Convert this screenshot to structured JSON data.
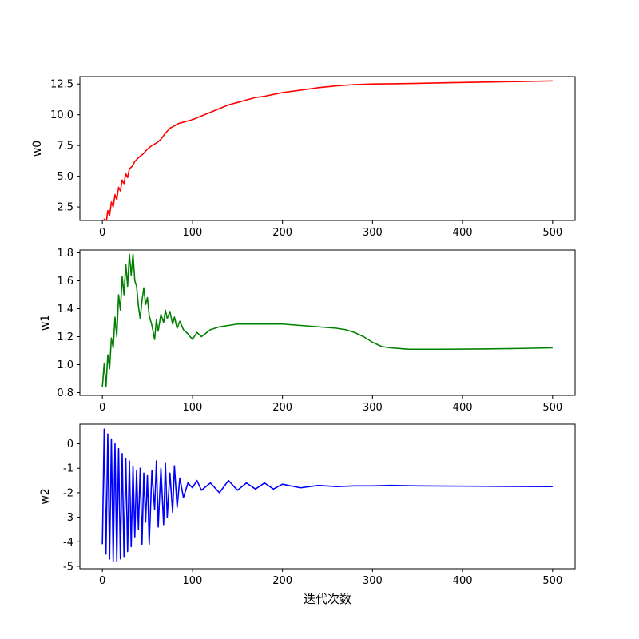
{
  "chart_data": [
    {
      "type": "line",
      "title": "",
      "xlabel": "",
      "ylabel": "w0",
      "xlim": [
        -25,
        525
      ],
      "ylim": [
        1.4,
        13.1
      ],
      "xticks": [
        0,
        100,
        200,
        300,
        400,
        500
      ],
      "yticks": [
        2.5,
        5.0,
        7.5,
        10.0,
        12.5
      ],
      "ytick_format": "1dp",
      "grid": false,
      "legend": "none",
      "series": [
        {
          "color": "#ff0000",
          "x": [
            0,
            2,
            4,
            6,
            8,
            10,
            12,
            14,
            16,
            18,
            20,
            22,
            24,
            26,
            28,
            30,
            33,
            36,
            40,
            45,
            50,
            55,
            60,
            65,
            70,
            75,
            80,
            85,
            90,
            95,
            100,
            110,
            120,
            130,
            140,
            150,
            160,
            170,
            180,
            190,
            200,
            220,
            240,
            260,
            280,
            300,
            320,
            350,
            380,
            420,
            460,
            500
          ],
          "y": [
            0.7,
            1.5,
            1.1,
            2.2,
            1.8,
            2.9,
            2.5,
            3.5,
            3.1,
            4.1,
            3.8,
            4.7,
            4.4,
            5.2,
            4.9,
            5.6,
            5.8,
            6.2,
            6.5,
            6.8,
            7.2,
            7.5,
            7.7,
            8.0,
            8.5,
            8.9,
            9.1,
            9.3,
            9.4,
            9.5,
            9.6,
            9.9,
            10.2,
            10.5,
            10.8,
            11.0,
            11.2,
            11.4,
            11.5,
            11.65,
            11.8,
            12.0,
            12.2,
            12.35,
            12.45,
            12.5,
            12.52,
            12.55,
            12.6,
            12.65,
            12.7,
            12.75
          ]
        }
      ]
    },
    {
      "type": "line",
      "title": "",
      "xlabel": "",
      "ylabel": "w1",
      "xlim": [
        -25,
        525
      ],
      "ylim": [
        0.78,
        1.82
      ],
      "xticks": [
        0,
        100,
        200,
        300,
        400,
        500
      ],
      "yticks": [
        0.8,
        1.0,
        1.2,
        1.4,
        1.6,
        1.8
      ],
      "ytick_format": "1dp",
      "grid": false,
      "legend": "none",
      "series": [
        {
          "color": "#008000",
          "x": [
            0,
            2,
            4,
            6,
            8,
            10,
            12,
            14,
            16,
            18,
            20,
            22,
            24,
            26,
            28,
            30,
            32,
            34,
            36,
            38,
            40,
            42,
            44,
            46,
            48,
            50,
            52,
            55,
            58,
            60,
            62,
            65,
            68,
            70,
            72,
            75,
            78,
            80,
            83,
            86,
            90,
            95,
            100,
            105,
            110,
            120,
            130,
            140,
            150,
            160,
            170,
            180,
            190,
            200,
            220,
            240,
            260,
            270,
            280,
            290,
            300,
            310,
            320,
            340,
            360,
            380,
            420,
            460,
            500
          ],
          "y": [
            0.84,
            1.01,
            0.84,
            1.07,
            0.97,
            1.19,
            1.12,
            1.34,
            1.2,
            1.5,
            1.39,
            1.63,
            1.5,
            1.72,
            1.56,
            1.79,
            1.64,
            1.79,
            1.6,
            1.56,
            1.42,
            1.33,
            1.46,
            1.55,
            1.43,
            1.48,
            1.35,
            1.28,
            1.18,
            1.32,
            1.24,
            1.36,
            1.3,
            1.39,
            1.33,
            1.38,
            1.29,
            1.34,
            1.26,
            1.31,
            1.25,
            1.22,
            1.18,
            1.23,
            1.2,
            1.25,
            1.27,
            1.28,
            1.29,
            1.29,
            1.29,
            1.29,
            1.29,
            1.29,
            1.28,
            1.27,
            1.26,
            1.25,
            1.23,
            1.2,
            1.16,
            1.13,
            1.12,
            1.11,
            1.11,
            1.11,
            1.112,
            1.115,
            1.12
          ]
        }
      ]
    },
    {
      "type": "line",
      "title": "",
      "xlabel": "迭代次数",
      "ylabel": "w2",
      "xlim": [
        -25,
        525
      ],
      "ylim": [
        -5.1,
        0.8
      ],
      "xticks": [
        0,
        100,
        200,
        300,
        400,
        500
      ],
      "yticks": [
        0,
        -1,
        -2,
        -3,
        -4,
        -5
      ],
      "ytick_format": "int",
      "grid": false,
      "legend": "none",
      "series": [
        {
          "color": "#0000ff",
          "x": [
            0,
            2,
            4,
            6,
            8,
            10,
            12,
            14,
            16,
            18,
            20,
            22,
            24,
            26,
            28,
            30,
            32,
            34,
            36,
            38,
            40,
            42,
            44,
            46,
            48,
            50,
            52,
            55,
            58,
            60,
            62,
            65,
            68,
            70,
            72,
            75,
            78,
            80,
            83,
            86,
            90,
            95,
            100,
            105,
            110,
            120,
            130,
            140,
            150,
            160,
            170,
            180,
            190,
            200,
            220,
            240,
            260,
            280,
            300,
            320,
            350,
            400,
            450,
            500
          ],
          "y": [
            -4.1,
            0.6,
            -4.5,
            0.4,
            -4.7,
            0.2,
            -4.8,
            0.0,
            -4.8,
            -0.2,
            -4.7,
            -0.4,
            -4.6,
            -0.6,
            -4.4,
            -0.7,
            -4.2,
            -0.9,
            -3.8,
            -1.1,
            -3.5,
            -1.0,
            -4.1,
            -1.2,
            -3.2,
            -1.3,
            -4.1,
            -1.1,
            -2.7,
            -0.7,
            -3.4,
            -1.0,
            -3.3,
            -0.8,
            -3.0,
            -1.2,
            -2.8,
            -0.9,
            -2.6,
            -1.4,
            -2.2,
            -1.6,
            -1.8,
            -1.5,
            -1.9,
            -1.6,
            -2.0,
            -1.5,
            -1.9,
            -1.6,
            -1.85,
            -1.6,
            -1.85,
            -1.65,
            -1.8,
            -1.7,
            -1.75,
            -1.72,
            -1.72,
            -1.7,
            -1.72,
            -1.73,
            -1.74,
            -1.75
          ]
        }
      ]
    }
  ]
}
